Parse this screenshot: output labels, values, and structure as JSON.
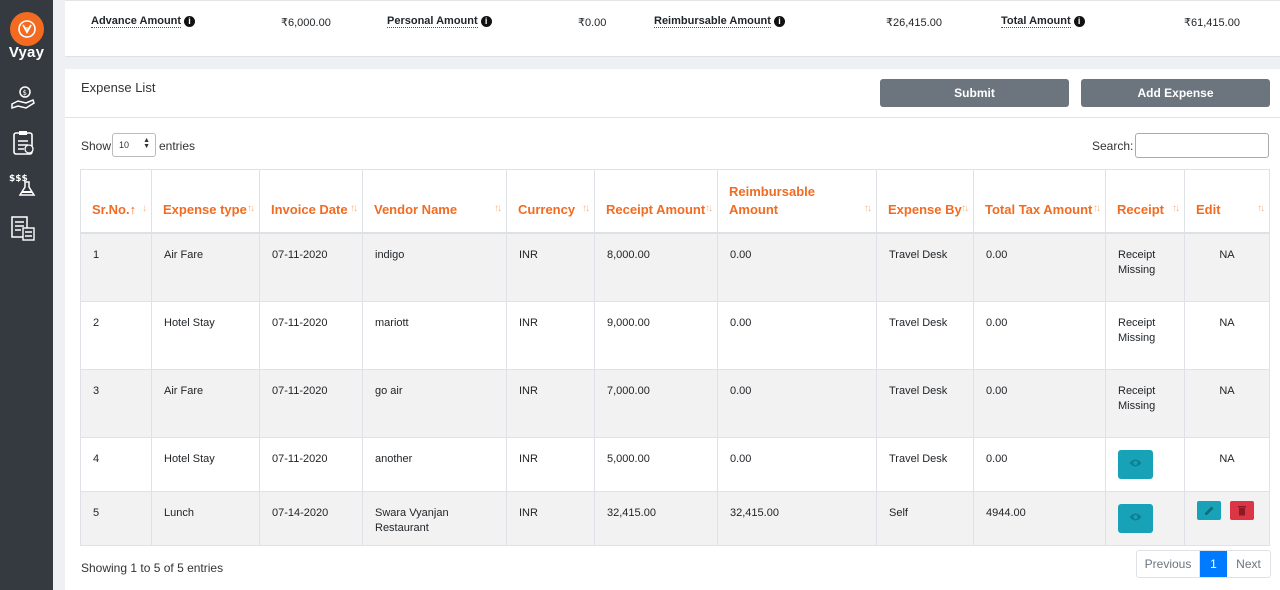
{
  "brand": {
    "name": "Vyay"
  },
  "sidebar": {
    "icons": [
      "expense-hand-icon",
      "report-clipboard-icon",
      "money-flask-icon",
      "calculator-doc-icon"
    ]
  },
  "summary": {
    "advance_label": "Advance Amount",
    "advance_value": "₹6,000.00",
    "personal_label": "Personal Amount",
    "personal_value": "₹0.00",
    "reimbursable_label": "Reimbursable Amount",
    "reimbursable_value": "₹26,415.00",
    "total_label": "Total Amount",
    "total_value": "₹61,415.00",
    "info_glyph": "i"
  },
  "expense_list": {
    "title": "Expense List",
    "submit_label": "Submit",
    "add_label": "Add Expense",
    "show_label": "Show",
    "entries_value": "10",
    "entries_label": "entries",
    "search_label": "Search:",
    "columns": [
      "Sr.No.",
      "Expense type",
      "Invoice Date",
      "Vendor Name",
      "Currency",
      "Receipt Amount",
      "Reimbursable Amount",
      "Expense By",
      "Total Tax Amount",
      "Receipt",
      "Edit"
    ],
    "rows": [
      {
        "sr": "1",
        "type": "Air Fare",
        "date": "07-11-2020",
        "vendor": "indigo",
        "currency": "INR",
        "receipt_amount": "8,000.00",
        "reimbursable": "0.00",
        "by": "Travel Desk",
        "tax": "0.00",
        "receipt": "Receipt Missing",
        "edit": "NA"
      },
      {
        "sr": "2",
        "type": "Hotel Stay",
        "date": "07-11-2020",
        "vendor": "mariott",
        "currency": "INR",
        "receipt_amount": "9,000.00",
        "reimbursable": "0.00",
        "by": "Travel Desk",
        "tax": "0.00",
        "receipt": "Receipt Missing",
        "edit": "NA"
      },
      {
        "sr": "3",
        "type": "Air Fare",
        "date": "07-11-2020",
        "vendor": "go air",
        "currency": "INR",
        "receipt_amount": "7,000.00",
        "reimbursable": "0.00",
        "by": "Travel Desk",
        "tax": "0.00",
        "receipt": "Receipt Missing",
        "edit": "NA"
      },
      {
        "sr": "4",
        "type": "Hotel Stay",
        "date": "07-11-2020",
        "vendor": "another",
        "currency": "INR",
        "receipt_amount": "5,000.00",
        "reimbursable": "0.00",
        "by": "Travel Desk",
        "tax": "0.00",
        "receipt": "view-eye-icon",
        "edit": "NA"
      },
      {
        "sr": "5",
        "type": "Lunch",
        "date": "07-14-2020",
        "vendor": "Swara Vyanjan Restaurant",
        "currency": "INR",
        "receipt_amount": "32,415.00",
        "reimbursable": "32,415.00",
        "by": "Self",
        "tax": "4944.00",
        "receipt": "view-eye-icon",
        "edit": "edit-delete-icons"
      }
    ],
    "footer_info": "Showing 1 to 5 of 5 entries",
    "pager": {
      "previous": "Previous",
      "current": "1",
      "next": "Next"
    }
  },
  "colors": {
    "accent": "#f26b21",
    "sidebar": "#343a40",
    "button_grey": "#6c757d",
    "info": "#17a2b8",
    "danger": "#dc3545",
    "primary": "#007bff",
    "success": "#28a745"
  }
}
